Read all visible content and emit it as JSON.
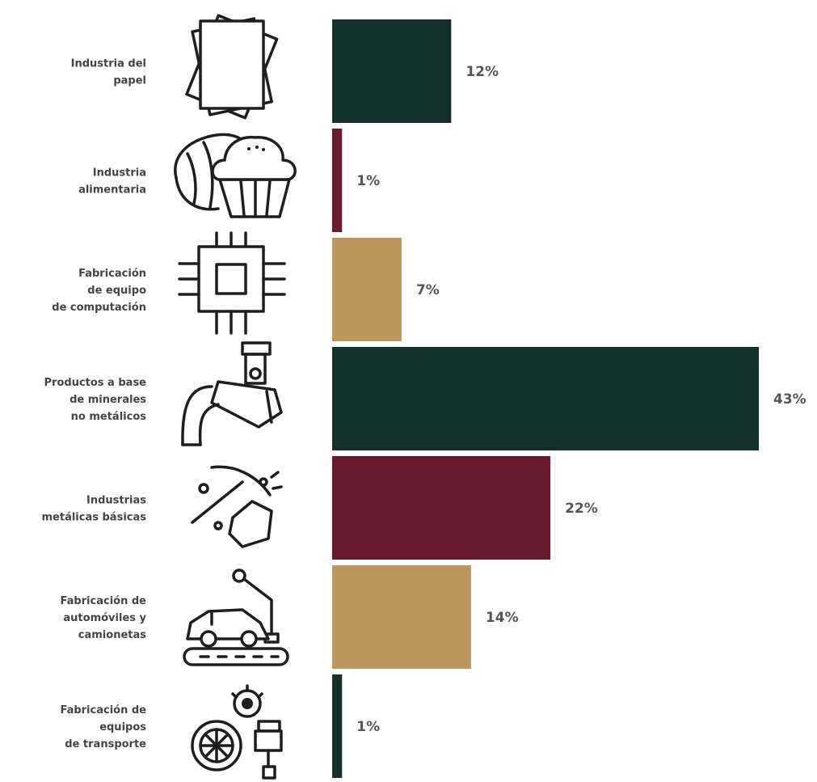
{
  "chart_data": {
    "type": "bar",
    "orientation": "horizontal",
    "categories": [
      [
        "Industria del",
        "papel"
      ],
      [
        "Industria",
        "alimentaria"
      ],
      [
        "Fabricación",
        "de equipo",
        "de computación"
      ],
      [
        "Productos a base",
        "de minerales",
        "no metálicos"
      ],
      [
        "Industrias",
        "metálicas básicas"
      ],
      [
        "Fabricación de",
        "automóviles y",
        "camionetas"
      ],
      [
        "Fabricación de",
        "equipos",
        "de transporte"
      ]
    ],
    "values": [
      12,
      1,
      7,
      43,
      22,
      14,
      1
    ],
    "value_labels": [
      "12%",
      "1%",
      "7%",
      "43%",
      "22%",
      "14%",
      "1%"
    ],
    "bar_colors": [
      "#13302b",
      "#6a1a2e",
      "#bf955e",
      "#13302b",
      "#6a1a2e",
      "#bf955e",
      "#13302b"
    ],
    "icons": [
      "paper-stack-icon",
      "bread-muffin-icon",
      "microchip-icon",
      "cement-pour-icon",
      "pickaxe-ore-icon",
      "car-assembly-robot-icon",
      "wheel-gear-engine-icon"
    ],
    "xlim": [
      0,
      43
    ],
    "grid": false,
    "legend": "none"
  }
}
